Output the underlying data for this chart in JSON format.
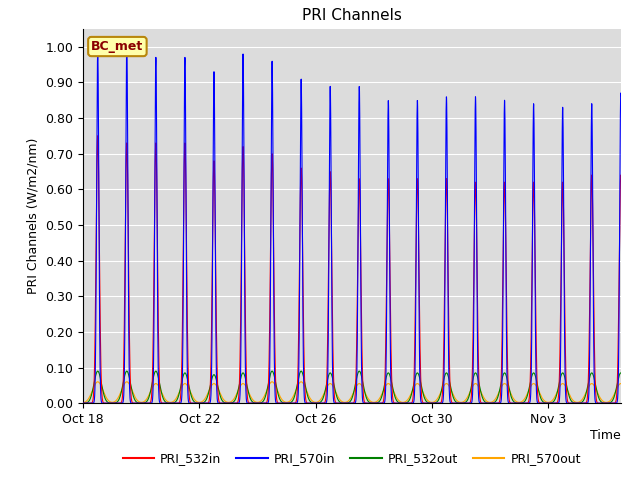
{
  "title": "PRI Channels",
  "ylabel": "PRI Channels (W/m2/nm)",
  "xlabel": "Time",
  "ylim": [
    0.0,
    1.05
  ],
  "bg_color": "#dcdcdc",
  "label_box_text": "BC_met",
  "legend_entries": [
    "PRI_532in",
    "PRI_570in",
    "PRI_532out",
    "PRI_570out"
  ],
  "legend_colors": [
    "red",
    "blue",
    "green",
    "orange"
  ],
  "xtick_labels": [
    "Oct 18",
    "Oct 22",
    "Oct 26",
    "Oct 30",
    "Nov 3"
  ],
  "num_days": 19,
  "points_per_day": 200,
  "sigma_in": 0.055,
  "sigma_in_blue": 0.038,
  "sigma_out_green": 0.13,
  "sigma_out_orange": 0.18,
  "peak_532in": [
    0.75,
    0.73,
    0.73,
    0.73,
    0.68,
    0.72,
    0.7,
    0.66,
    0.65,
    0.63,
    0.63,
    0.63,
    0.63,
    0.62,
    0.62,
    0.62,
    0.62,
    0.64,
    0.64
  ],
  "peak_570in": [
    0.99,
    1.0,
    0.97,
    0.97,
    0.93,
    0.98,
    0.96,
    0.91,
    0.89,
    0.89,
    0.85,
    0.85,
    0.86,
    0.86,
    0.85,
    0.84,
    0.83,
    0.84,
    0.87
  ],
  "peak_532out": [
    0.09,
    0.09,
    0.09,
    0.085,
    0.08,
    0.085,
    0.09,
    0.09,
    0.085,
    0.09,
    0.085,
    0.085,
    0.085,
    0.085,
    0.085,
    0.085,
    0.085,
    0.085,
    0.085
  ],
  "peak_570out": [
    0.06,
    0.06,
    0.055,
    0.055,
    0.055,
    0.055,
    0.06,
    0.06,
    0.055,
    0.055,
    0.055,
    0.055,
    0.055,
    0.055,
    0.055,
    0.055,
    0.055,
    0.055,
    0.055
  ],
  "tick_positions": [
    0,
    4,
    8,
    12,
    16
  ],
  "xlim_max": 18.5
}
